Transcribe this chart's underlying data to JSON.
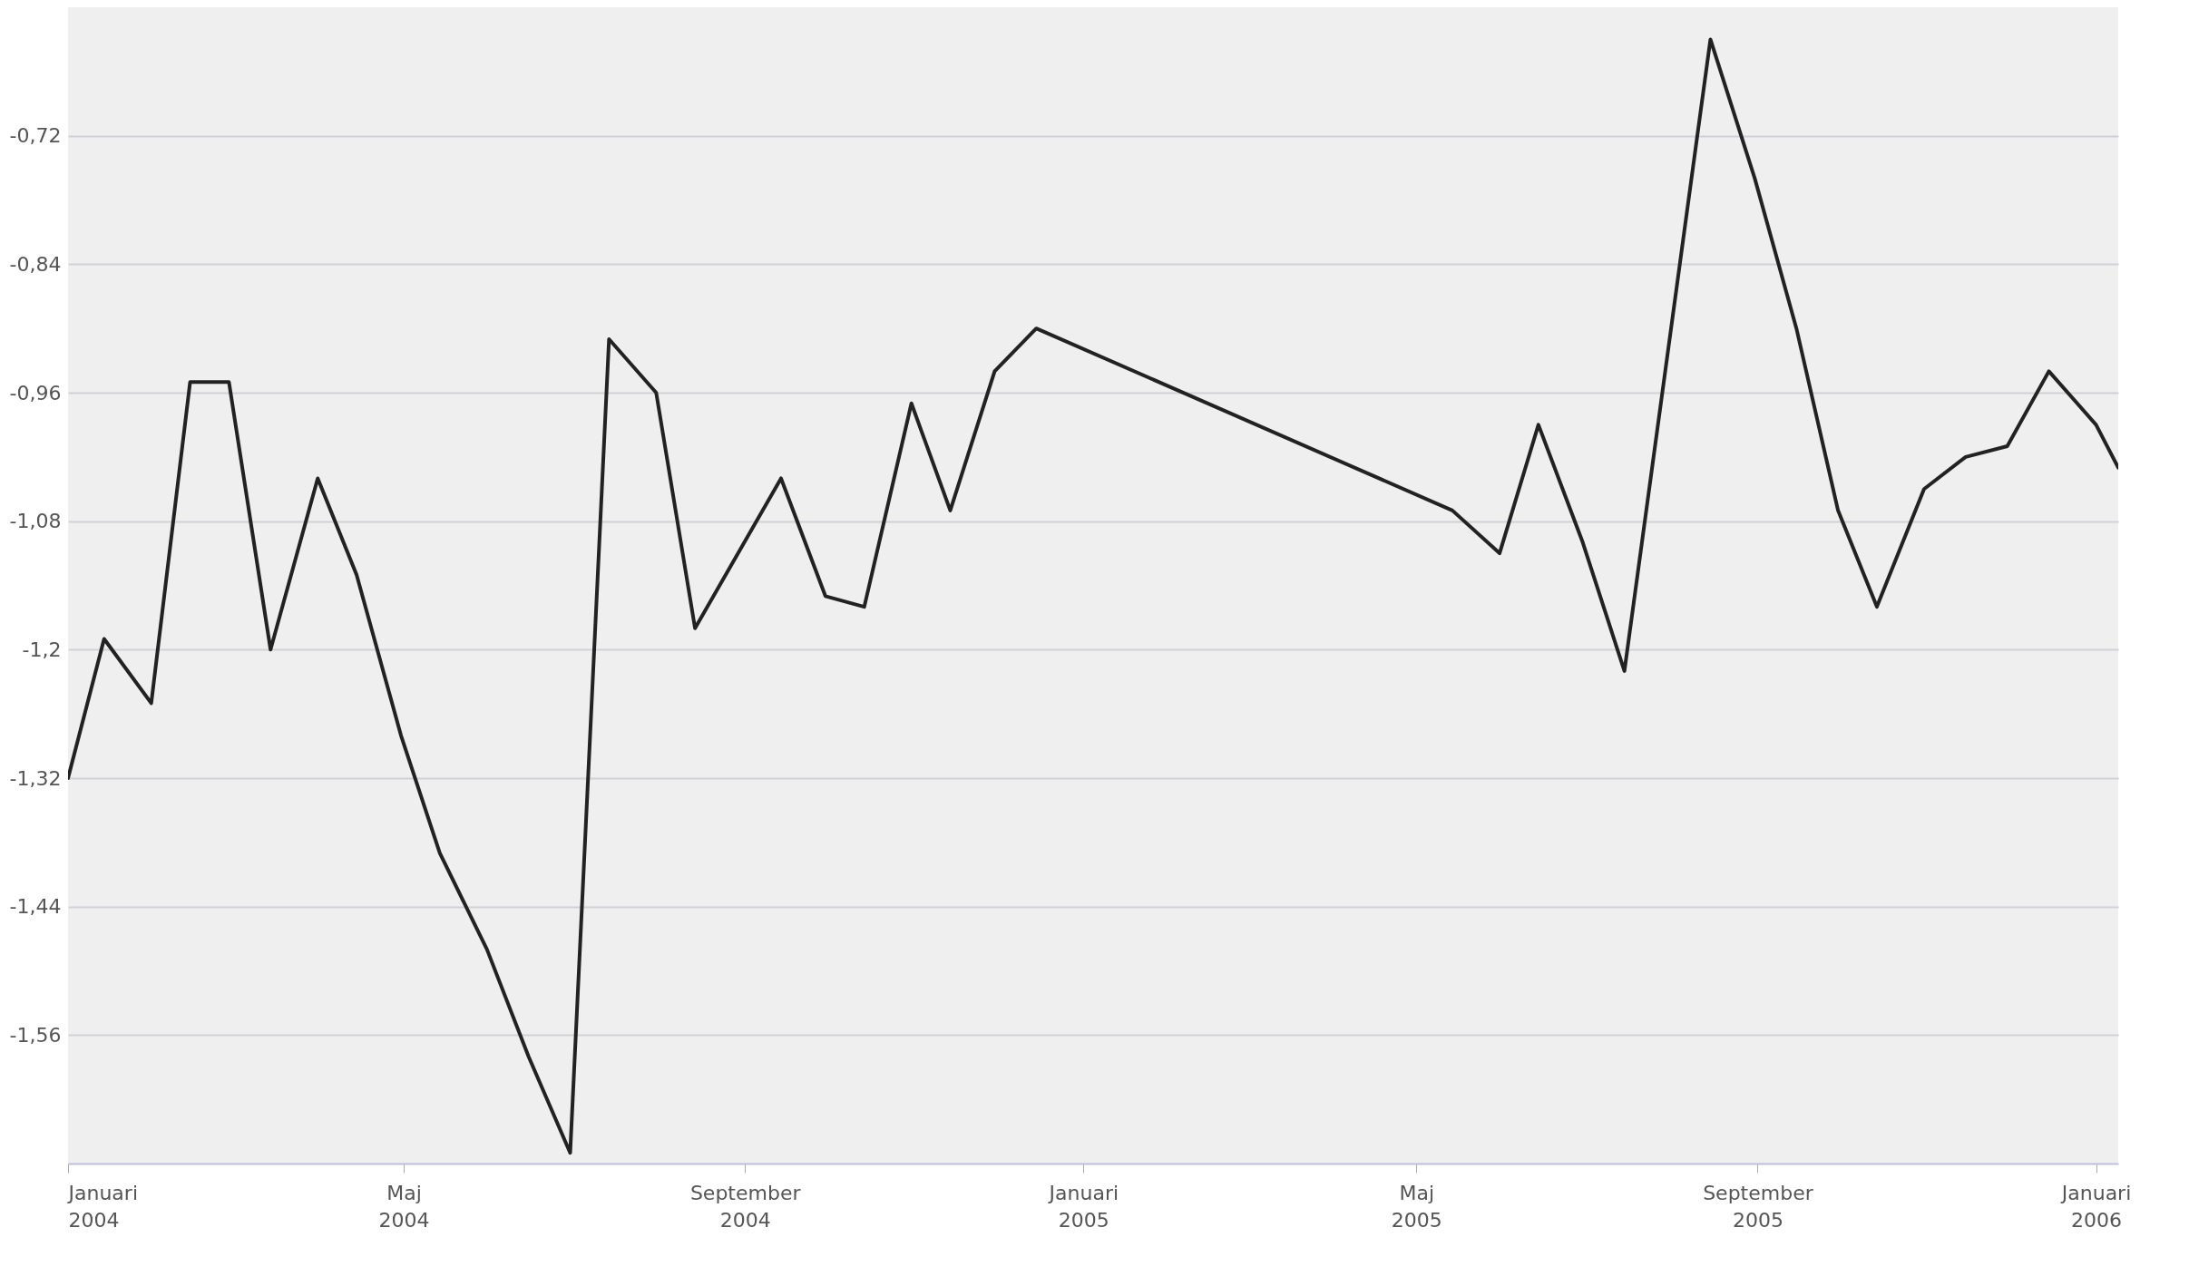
{
  "chart_data": {
    "type": "line",
    "x": [
      "2004-01-01",
      "2004-01-14",
      "2004-01-31",
      "2004-02-14",
      "2004-02-28",
      "2004-03-14",
      "2004-03-31",
      "2004-04-14",
      "2004-04-30",
      "2004-05-14",
      "2004-05-31",
      "2004-06-15",
      "2004-06-30",
      "2004-07-14",
      "2004-07-31",
      "2004-08-14",
      "2004-09-14",
      "2004-09-30",
      "2004-10-14",
      "2004-10-31",
      "2004-11-14",
      "2004-11-30",
      "2004-12-15",
      "2005-05-14",
      "2005-05-31",
      "2005-06-14",
      "2005-06-30",
      "2005-07-15",
      "2005-08-15",
      "2005-08-31",
      "2005-09-15",
      "2005-09-30",
      "2005-10-14",
      "2005-10-31",
      "2005-11-15",
      "2005-11-30",
      "2005-12-15",
      "2006-01-01",
      "2006-01-09"
    ],
    "series": [
      {
        "color": "#222222",
        "values": [
          -1.32,
          -1.19,
          -1.25,
          -0.95,
          -0.95,
          -1.2,
          -1.04,
          -1.13,
          -1.28,
          -1.39,
          -1.48,
          -1.58,
          -1.67,
          -0.91,
          -0.96,
          -1.18,
          -1.04,
          -1.15,
          -1.16,
          -0.97,
          -1.07,
          -0.94,
          -0.9,
          -1.07,
          -1.11,
          -0.99,
          -1.1,
          -1.22,
          -0.63,
          -0.76,
          -0.9,
          -1.07,
          -1.16,
          -1.05,
          -1.02,
          -1.01,
          -0.94,
          -0.99,
          -1.03
        ]
      }
    ],
    "xlim": [
      "2004-01-01",
      "2006-01-09"
    ],
    "xticks": [
      {
        "value": "2004-01-01",
        "label": "Januari 2004"
      },
      {
        "value": "2004-05-01",
        "label": "Maj 2004"
      },
      {
        "value": "2004-09-01",
        "label": "September 2004"
      },
      {
        "value": "2005-01-01",
        "label": "Januari 2005"
      },
      {
        "value": "2005-05-01",
        "label": "Maj 2005"
      },
      {
        "value": "2005-09-01",
        "label": "September 2005"
      },
      {
        "value": "2006-01-01",
        "label": "Januari 2006"
      }
    ],
    "ylim": [
      -1.68,
      -0.6
    ],
    "yticks": [
      {
        "value": -0.72,
        "label": "-0,72"
      },
      {
        "value": -0.84,
        "label": "-0,84"
      },
      {
        "value": -0.96,
        "label": "-0,96"
      },
      {
        "value": -1.08,
        "label": "-1,08"
      },
      {
        "value": -1.2,
        "label": "-1,2"
      },
      {
        "value": -1.32,
        "label": "-1,32"
      },
      {
        "value": -1.44,
        "label": "-1,44"
      },
      {
        "value": -1.56,
        "label": "-1,56"
      }
    ],
    "grid": "y",
    "marker": "none",
    "line_style": "solid"
  }
}
